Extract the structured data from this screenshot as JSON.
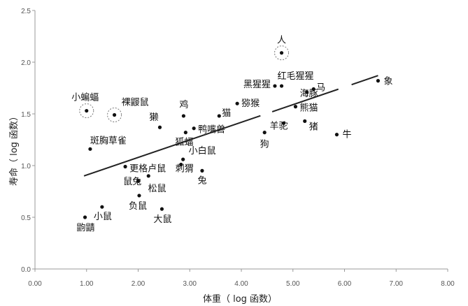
{
  "chart_data": {
    "type": "scatter",
    "title": "",
    "xlabel": "体重（ log 函数）",
    "ylabel": "寿命（ log 函数）",
    "xlim": [
      0,
      8
    ],
    "ylim": [
      0,
      2.5
    ],
    "x_ticks": [
      "0.00",
      "1.00",
      "2.00",
      "3.00",
      "4.00",
      "5.00",
      "6.00",
      "7.00",
      "8.00"
    ],
    "y_ticks": [
      "0.0",
      "0.5",
      "1.0",
      "1.5",
      "2.0",
      "2.5"
    ],
    "grid": false,
    "points": [
      {
        "label": "人",
        "x": 4.78,
        "y": 2.09,
        "highlight": true
      },
      {
        "label": "小蝙蝠",
        "x": 1.0,
        "y": 1.53,
        "highlight": true
      },
      {
        "label": "裸鼹鼠",
        "x": 1.54,
        "y": 1.49,
        "highlight": true
      },
      {
        "label": "象",
        "x": 6.65,
        "y": 1.82
      },
      {
        "label": "红毛猩猩",
        "x": 4.78,
        "y": 1.77
      },
      {
        "label": "黑猩猩",
        "x": 4.65,
        "y": 1.77
      },
      {
        "label": "马",
        "x": 5.4,
        "y": 1.74
      },
      {
        "label": "海豚",
        "x": 5.27,
        "y": 1.71
      },
      {
        "label": "猕猴",
        "x": 3.92,
        "y": 1.6
      },
      {
        "label": "熊猫",
        "x": 5.05,
        "y": 1.57
      },
      {
        "label": "鸡",
        "x": 2.88,
        "y": 1.48
      },
      {
        "label": "猫",
        "x": 3.57,
        "y": 1.48
      },
      {
        "label": "猪",
        "x": 5.23,
        "y": 1.43
      },
      {
        "label": "羊驼",
        "x": 4.82,
        "y": 1.41
      },
      {
        "label": "獭",
        "x": 2.42,
        "y": 1.37
      },
      {
        "label": "鸭嘴兽",
        "x": 3.08,
        "y": 1.36
      },
      {
        "label": "狐蝠",
        "x": 2.92,
        "y": 1.32
      },
      {
        "label": "狗",
        "x": 4.45,
        "y": 1.32
      },
      {
        "label": "牛",
        "x": 5.85,
        "y": 1.3
      },
      {
        "label": "斑胸草雀",
        "x": 1.07,
        "y": 1.16
      },
      {
        "label": "小白鼠",
        "x": 2.87,
        "y": 1.06
      },
      {
        "label": "刺猬",
        "x": 2.83,
        "y": 1.01
      },
      {
        "label": "更格卢鼠",
        "x": 1.75,
        "y": 0.99
      },
      {
        "label": "兔",
        "x": 3.24,
        "y": 0.95
      },
      {
        "label": "鼠兔",
        "x": 2.2,
        "y": 0.9
      },
      {
        "label": "松鼠",
        "x": 2.0,
        "y": 0.85
      },
      {
        "label": "负鼠",
        "x": 2.02,
        "y": 0.71
      },
      {
        "label": "小鼠",
        "x": 1.3,
        "y": 0.6
      },
      {
        "label": "大鼠",
        "x": 2.46,
        "y": 0.58
      },
      {
        "label": "鼩鼱",
        "x": 0.97,
        "y": 0.5
      }
    ],
    "trendline": [
      {
        "x": 0.95,
        "y": 0.9
      },
      {
        "x": 6.65,
        "y": 1.87
      }
    ],
    "colors": {
      "points": "#111111",
      "trendline": "#222222",
      "axis": "#999999",
      "highlight": "#777777"
    }
  }
}
